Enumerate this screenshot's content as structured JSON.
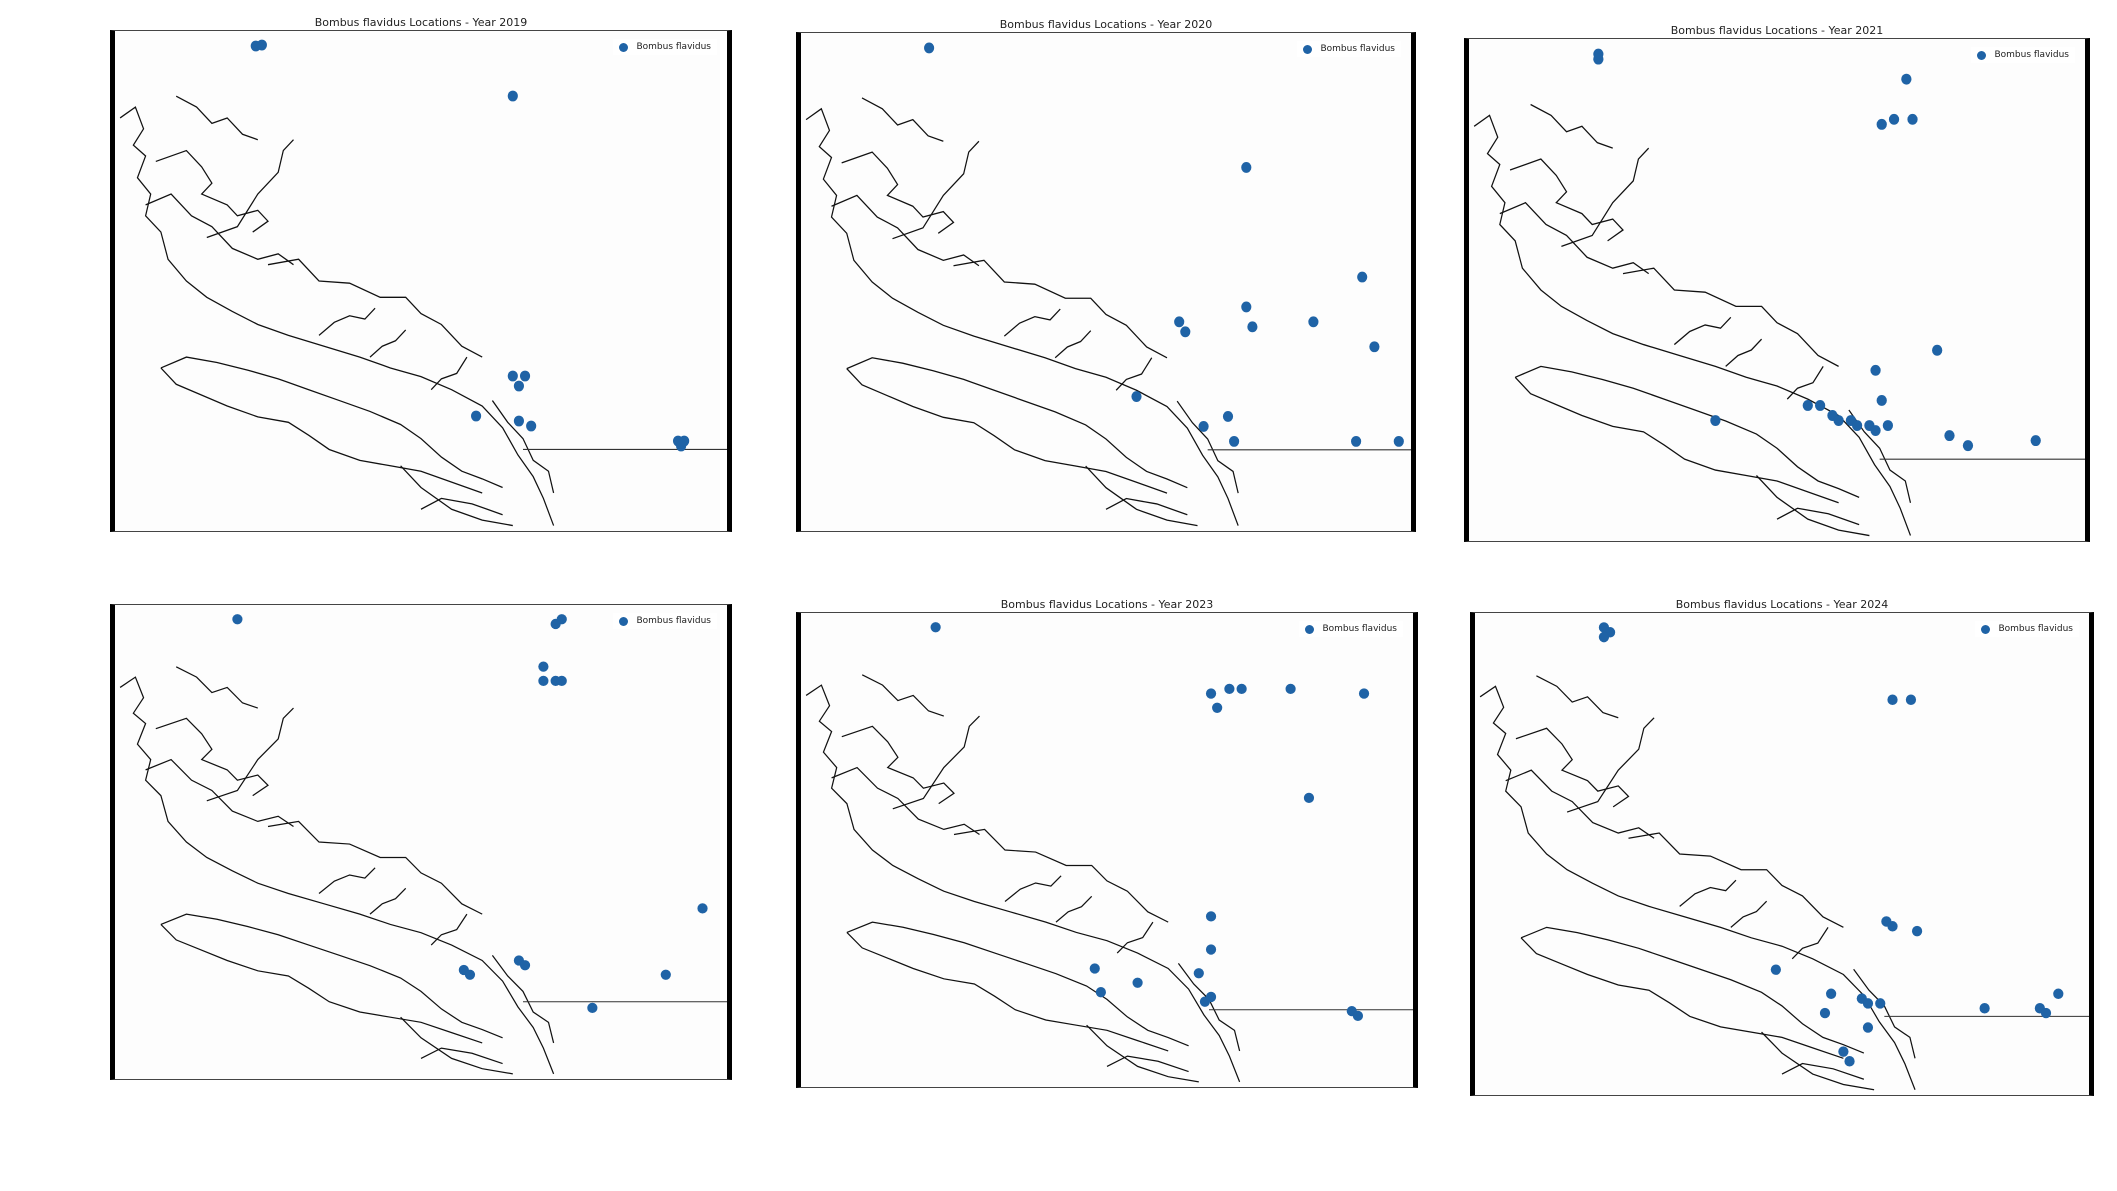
{
  "figure": {
    "accent_color": "#1f63a6",
    "coast_color": "#111111",
    "border_line_color": "#333333",
    "panels": [
      {
        "title": "Bombus flavidus Locations - Year 2019",
        "legend_label": "Bombus flavidus",
        "points": [
          [
            0.23,
            0.03
          ],
          [
            0.24,
            0.028
          ],
          [
            0.65,
            0.13
          ],
          [
            0.65,
            0.69
          ],
          [
            0.67,
            0.69
          ],
          [
            0.66,
            0.71
          ],
          [
            0.59,
            0.77
          ],
          [
            0.66,
            0.78
          ],
          [
            0.68,
            0.79
          ],
          [
            0.92,
            0.82
          ],
          [
            0.925,
            0.83
          ],
          [
            0.93,
            0.82
          ]
        ]
      },
      {
        "title": "Bombus flavidus Locations - Year 2020",
        "legend_label": "Bombus flavidus",
        "points": [
          [
            0.21,
            0.03
          ],
          [
            0.73,
            0.27
          ],
          [
            0.92,
            0.49
          ],
          [
            0.73,
            0.55
          ],
          [
            0.62,
            0.58
          ],
          [
            0.63,
            0.6
          ],
          [
            0.74,
            0.59
          ],
          [
            0.84,
            0.58
          ],
          [
            0.94,
            0.63
          ],
          [
            0.55,
            0.73
          ],
          [
            0.66,
            0.79
          ],
          [
            0.7,
            0.77
          ],
          [
            0.71,
            0.82
          ],
          [
            0.91,
            0.82
          ],
          [
            0.98,
            0.82
          ]
        ]
      },
      {
        "title": "Bombus flavidus Locations - Year 2021",
        "legend_label": "Bombus flavidus",
        "points": [
          [
            0.21,
            0.03
          ],
          [
            0.21,
            0.04
          ],
          [
            0.71,
            0.08
          ],
          [
            0.69,
            0.16
          ],
          [
            0.67,
            0.17
          ],
          [
            0.72,
            0.16
          ],
          [
            0.76,
            0.62
          ],
          [
            0.66,
            0.66
          ],
          [
            0.67,
            0.72
          ],
          [
            0.55,
            0.73
          ],
          [
            0.57,
            0.73
          ],
          [
            0.59,
            0.75
          ],
          [
            0.6,
            0.76
          ],
          [
            0.62,
            0.76
          ],
          [
            0.63,
            0.77
          ],
          [
            0.65,
            0.77
          ],
          [
            0.66,
            0.78
          ],
          [
            0.68,
            0.77
          ],
          [
            0.4,
            0.76
          ],
          [
            0.78,
            0.79
          ],
          [
            0.81,
            0.81
          ],
          [
            0.92,
            0.8
          ]
        ]
      },
      {
        "title": "",
        "legend_label": "Bombus flavidus",
        "points": [
          [
            0.2,
            0.03
          ],
          [
            0.72,
            0.04
          ],
          [
            0.73,
            0.03
          ],
          [
            0.7,
            0.13
          ],
          [
            0.7,
            0.16
          ],
          [
            0.72,
            0.16
          ],
          [
            0.73,
            0.16
          ],
          [
            0.96,
            0.64
          ],
          [
            0.9,
            0.78
          ],
          [
            0.57,
            0.77
          ],
          [
            0.58,
            0.78
          ],
          [
            0.66,
            0.75
          ],
          [
            0.67,
            0.76
          ],
          [
            0.78,
            0.85
          ]
        ]
      },
      {
        "title": "Bombus flavidus Locations - Year 2023",
        "legend_label": "Bombus flavidus",
        "points": [
          [
            0.22,
            0.03
          ],
          [
            0.67,
            0.17
          ],
          [
            0.68,
            0.2
          ],
          [
            0.7,
            0.16
          ],
          [
            0.72,
            0.16
          ],
          [
            0.8,
            0.16
          ],
          [
            0.92,
            0.17
          ],
          [
            0.83,
            0.39
          ],
          [
            0.67,
            0.64
          ],
          [
            0.67,
            0.71
          ],
          [
            0.48,
            0.75
          ],
          [
            0.49,
            0.8
          ],
          [
            0.55,
            0.78
          ],
          [
            0.65,
            0.76
          ],
          [
            0.66,
            0.82
          ],
          [
            0.67,
            0.81
          ],
          [
            0.9,
            0.84
          ],
          [
            0.91,
            0.85
          ]
        ]
      },
      {
        "title": "Bombus flavidus Locations - Year 2024",
        "legend_label": "Bombus flavidus",
        "points": [
          [
            0.21,
            0.03
          ],
          [
            0.22,
            0.04
          ],
          [
            0.21,
            0.05
          ],
          [
            0.68,
            0.18
          ],
          [
            0.71,
            0.18
          ],
          [
            0.67,
            0.64
          ],
          [
            0.68,
            0.65
          ],
          [
            0.72,
            0.66
          ],
          [
            0.49,
            0.74
          ],
          [
            0.58,
            0.79
          ],
          [
            0.57,
            0.83
          ],
          [
            0.63,
            0.8
          ],
          [
            0.64,
            0.81
          ],
          [
            0.66,
            0.81
          ],
          [
            0.64,
            0.86
          ],
          [
            0.6,
            0.91
          ],
          [
            0.61,
            0.93
          ],
          [
            0.83,
            0.82
          ],
          [
            0.92,
            0.82
          ],
          [
            0.93,
            0.83
          ],
          [
            0.95,
            0.79
          ]
        ]
      }
    ]
  }
}
